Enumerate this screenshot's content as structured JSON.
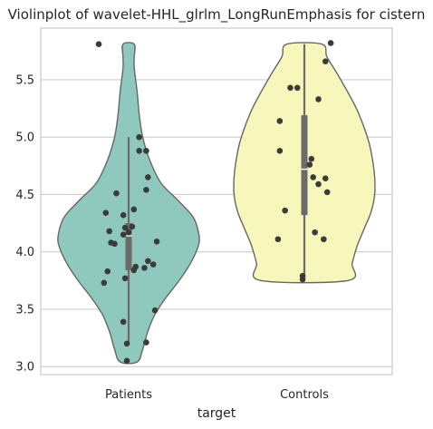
{
  "chart_data": {
    "type": "violin",
    "title": "Violinplot of wavelet-HHL_glrlm_LongRunEmphasis for cistern",
    "xlabel": "target",
    "ylabel": "",
    "ylim": [
      2.93,
      5.95
    ],
    "yticks": [
      "3.0",
      "3.5",
      "4.0",
      "4.5",
      "5.0",
      "5.5"
    ],
    "grid": true,
    "categories": [
      "Patients",
      "Controls"
    ],
    "series": [
      {
        "name": "Patients",
        "color": "#8fc9be",
        "box": {
          "whisker_low": 3.21,
          "q1": 3.84,
          "median": 4.14,
          "q3": 4.25,
          "whisker_high": 5.0
        },
        "violin_range": [
          3.04,
          5.81
        ],
        "density": [
          [
            3.04,
            0.12
          ],
          [
            3.15,
            0.2
          ],
          [
            3.3,
            0.27
          ],
          [
            3.45,
            0.37
          ],
          [
            3.6,
            0.53
          ],
          [
            3.75,
            0.72
          ],
          [
            3.9,
            0.88
          ],
          [
            4.05,
            0.99
          ],
          [
            4.15,
            1.0
          ],
          [
            4.3,
            0.92
          ],
          [
            4.45,
            0.7
          ],
          [
            4.6,
            0.46
          ],
          [
            4.8,
            0.3
          ],
          [
            5.0,
            0.2
          ],
          [
            5.2,
            0.15
          ],
          [
            5.4,
            0.12
          ],
          [
            5.6,
            0.08
          ],
          [
            5.7,
            0.08
          ],
          [
            5.81,
            0.08
          ]
        ],
        "points": [
          [
            5.81,
            -0.17
          ],
          [
            5.0,
            0.06
          ],
          [
            4.88,
            0.06
          ],
          [
            4.88,
            0.1
          ],
          [
            4.65,
            0.11
          ],
          [
            4.54,
            0.1
          ],
          [
            4.51,
            -0.07
          ],
          [
            4.37,
            0.03
          ],
          [
            4.34,
            -0.13
          ],
          [
            4.32,
            -0.03
          ],
          [
            4.22,
            0.02
          ],
          [
            4.21,
            -0.02
          ],
          [
            4.18,
            -0.11
          ],
          [
            4.17,
            0.0
          ],
          [
            4.15,
            -0.03
          ],
          [
            4.09,
            0.16
          ],
          [
            4.08,
            -0.1
          ],
          [
            4.07,
            -0.08
          ],
          [
            3.92,
            0.11
          ],
          [
            3.89,
            0.14
          ],
          [
            3.87,
            0.04
          ],
          [
            3.86,
            0.09
          ],
          [
            3.84,
            0.03
          ],
          [
            3.83,
            -0.12
          ],
          [
            3.77,
            -0.02
          ],
          [
            3.73,
            -0.14
          ],
          [
            3.49,
            0.15
          ],
          [
            3.39,
            -0.03
          ],
          [
            3.21,
            0.1
          ],
          [
            3.2,
            -0.01
          ],
          [
            3.05,
            -0.01
          ]
        ]
      },
      {
        "name": "Controls",
        "color": "#f7f7bb",
        "box": {
          "whisker_low": 3.76,
          "q1": 4.32,
          "median": 4.72,
          "q3": 5.19,
          "whisker_high": 5.81
        },
        "violin_range": [
          3.75,
          5.81
        ],
        "density": [
          [
            3.75,
            0.62
          ],
          [
            3.9,
            0.68
          ],
          [
            4.05,
            0.75
          ],
          [
            4.2,
            0.85
          ],
          [
            4.35,
            0.95
          ],
          [
            4.5,
            1.0
          ],
          [
            4.65,
            1.0
          ],
          [
            4.8,
            0.97
          ],
          [
            4.95,
            0.92
          ],
          [
            5.1,
            0.84
          ],
          [
            5.25,
            0.74
          ],
          [
            5.4,
            0.61
          ],
          [
            5.55,
            0.47
          ],
          [
            5.7,
            0.32
          ],
          [
            5.81,
            0.25
          ]
        ],
        "points": [
          [
            5.82,
            0.15
          ],
          [
            5.66,
            0.12
          ],
          [
            5.43,
            -0.08
          ],
          [
            5.43,
            -0.04
          ],
          [
            5.33,
            0.08
          ],
          [
            5.14,
            -0.14
          ],
          [
            4.88,
            -0.14
          ],
          [
            4.81,
            0.04
          ],
          [
            4.76,
            0.03
          ],
          [
            4.65,
            0.05
          ],
          [
            4.64,
            0.12
          ],
          [
            4.59,
            0.08
          ],
          [
            4.52,
            0.13
          ],
          [
            4.36,
            -0.11
          ],
          [
            4.17,
            0.06
          ],
          [
            4.11,
            -0.15
          ],
          [
            4.11,
            0.11
          ],
          [
            3.79,
            -0.01
          ],
          [
            3.76,
            -0.01
          ]
        ]
      }
    ]
  }
}
